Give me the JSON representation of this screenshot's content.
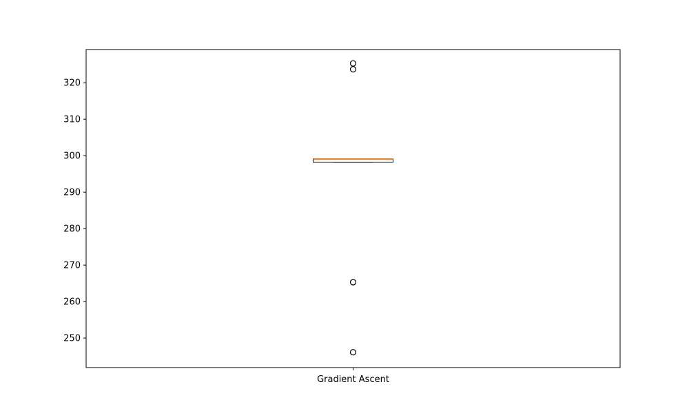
{
  "chart_data": {
    "type": "box",
    "categories": [
      "Gradient Ascent"
    ],
    "boxes": [
      {
        "label": "Gradient Ascent",
        "q1": 298.2,
        "median": 299.0,
        "q3": 299.1,
        "whisker_low": 298.2,
        "whisker_high": 299.1,
        "outliers": [
          325.3,
          323.7,
          265.3,
          246.1
        ]
      }
    ],
    "ylim": [
      241.9,
      329.1
    ],
    "yticks": [
      250,
      260,
      270,
      280,
      290,
      300,
      310,
      320
    ],
    "title": "",
    "xlabel": "",
    "ylabel": "",
    "grid": false,
    "colors": {
      "median": "#ff7f0e",
      "box": "#000000",
      "outlier": "#000000"
    }
  }
}
